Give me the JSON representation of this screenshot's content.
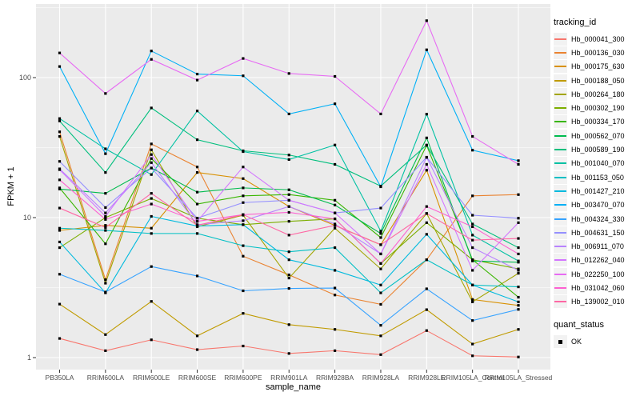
{
  "legend": {
    "tracking_title": "tracking_id",
    "quant_title": "quant_status",
    "quant_value": "OK"
  },
  "chart_data": {
    "type": "line",
    "title": "",
    "xlabel": "sample_name",
    "ylabel": "FPKM + 1",
    "y_scale": "log10",
    "ylim": [
      0.82,
      337
    ],
    "y_ticks": [
      1,
      10,
      100
    ],
    "y_minor_ticks": [
      3.162,
      31.62,
      316.2
    ],
    "grid": "on",
    "legend_position": "right",
    "marker": "black-square",
    "panel_bg": "#EBEBEB",
    "grid_color": "#FFFFFF",
    "categories": [
      "PB350LA",
      "RRIM600LA",
      "RRIM600LE",
      "RRIM600SE",
      "RRIM600PE",
      "RRIM901LA",
      "RRIM928BA",
      "RRIM928LA",
      "RRIM928LE",
      "RRIM105LA_Control",
      "RRIM105LA_Stressed"
    ],
    "series": [
      {
        "name": "Hb_000041_300",
        "color": "#F8766D",
        "values": [
          1.37,
          1.12,
          1.34,
          1.14,
          1.21,
          1.07,
          1.12,
          1.05,
          1.56,
          1.03,
          1.01
        ]
      },
      {
        "name": "Hb_000136_030",
        "color": "#EA8331",
        "values": [
          41,
          3.6,
          33.6,
          23,
          5.3,
          3.9,
          2.8,
          2.4,
          5.0,
          14.3,
          14.6
        ]
      },
      {
        "name": "Hb_000175_630",
        "color": "#D89000",
        "values": [
          8.1,
          8.8,
          8.4,
          21,
          19,
          12,
          8.8,
          6.4,
          21.8,
          2.6,
          2.36
        ]
      },
      {
        "name": "Hb_000188_050",
        "color": "#C09B00",
        "values": [
          2.41,
          1.46,
          2.52,
          1.43,
          2.07,
          1.72,
          1.59,
          1.43,
          2.2,
          1.25,
          1.59
        ]
      },
      {
        "name": "Hb_000264_180",
        "color": "#A3A500",
        "values": [
          38,
          3.4,
          30.5,
          8.6,
          10.4,
          3.7,
          8.4,
          4.3,
          10.7,
          2.5,
          4.0
        ]
      },
      {
        "name": "Hb_000302_190",
        "color": "#7CAE00",
        "values": [
          6.1,
          10.0,
          13.7,
          9.9,
          8.9,
          9.4,
          9.8,
          4.7,
          9.2,
          5.0,
          4.3
        ]
      },
      {
        "name": "Hb_000334_170",
        "color": "#39B600",
        "values": [
          16.3,
          6.5,
          26.4,
          12.5,
          14.3,
          14.6,
          13.3,
          7.2,
          32.8,
          5.0,
          2.7
        ]
      },
      {
        "name": "Hb_000562_070",
        "color": "#00BB4E",
        "values": [
          16.0,
          14.9,
          22.6,
          15.2,
          16.3,
          15.8,
          12.3,
          7.7,
          37.1,
          4.9,
          4.8
        ]
      },
      {
        "name": "Hb_000589_190",
        "color": "#00BF7D",
        "values": [
          49,
          21,
          60.7,
          36,
          30,
          28,
          24,
          16.8,
          33,
          9.0,
          6.1
        ]
      },
      {
        "name": "Hb_001040_070",
        "color": "#00C1A3",
        "values": [
          51,
          31,
          20.3,
          57.8,
          29.6,
          26,
          33,
          8.0,
          54.8,
          7.5,
          4.9
        ]
      },
      {
        "name": "Hb_001153_050",
        "color": "#00BFC4",
        "values": [
          8.4,
          8.1,
          7.7,
          7.7,
          6.3,
          5.7,
          6.1,
          2.9,
          5.0,
          3.3,
          3.2
        ]
      },
      {
        "name": "Hb_001427_210",
        "color": "#00BADE",
        "values": [
          6.7,
          2.9,
          10.2,
          8.7,
          8.9,
          5.0,
          4.2,
          3.3,
          7.6,
          3.3,
          2.5
        ]
      },
      {
        "name": "Hb_003470_070",
        "color": "#00B0F6",
        "values": [
          120,
          28.6,
          155,
          106,
          103,
          55,
          65,
          16.6,
          158,
          30.3,
          25.5
        ]
      },
      {
        "name": "Hb_004324_330",
        "color": "#35A2FF",
        "values": [
          3.94,
          2.94,
          4.47,
          3.83,
          3.0,
          3.12,
          3.14,
          1.7,
          3.1,
          1.84,
          2.21
        ]
      },
      {
        "name": "Hb_004631_150",
        "color": "#9590FF",
        "values": [
          25.2,
          11.8,
          22.6,
          9.9,
          12.8,
          13.3,
          10.8,
          11.7,
          27,
          10.4,
          9.9
        ]
      },
      {
        "name": "Hb_006911_070",
        "color": "#B983FF",
        "values": [
          22.3,
          10.8,
          24.7,
          8.9,
          9.5,
          12.0,
          9.0,
          5.5,
          26.9,
          6.1,
          4.2
        ]
      },
      {
        "name": "Hb_012262_040",
        "color": "#D376FF",
        "values": [
          22.0,
          10.2,
          28.2,
          9.4,
          23,
          13.3,
          10.8,
          5.5,
          24,
          4.2,
          9.2
        ]
      },
      {
        "name": "Hb_022250_100",
        "color": "#E76BF3",
        "values": [
          150,
          77,
          135,
          96,
          137,
          107,
          102,
          55,
          255,
          38,
          24
        ]
      },
      {
        "name": "Hb_031042_060",
        "color": "#FD61D1",
        "values": [
          18.6,
          9.7,
          12.5,
          9.4,
          10.5,
          10.9,
          9.8,
          4.7,
          12.0,
          8.6,
          5.5
        ]
      },
      {
        "name": "Hb_139002_010",
        "color": "#FF67A4",
        "values": [
          11.7,
          8.5,
          14.9,
          8.8,
          10.5,
          7.5,
          8.8,
          6.4,
          10.7,
          6.9,
          7.1
        ]
      }
    ]
  }
}
